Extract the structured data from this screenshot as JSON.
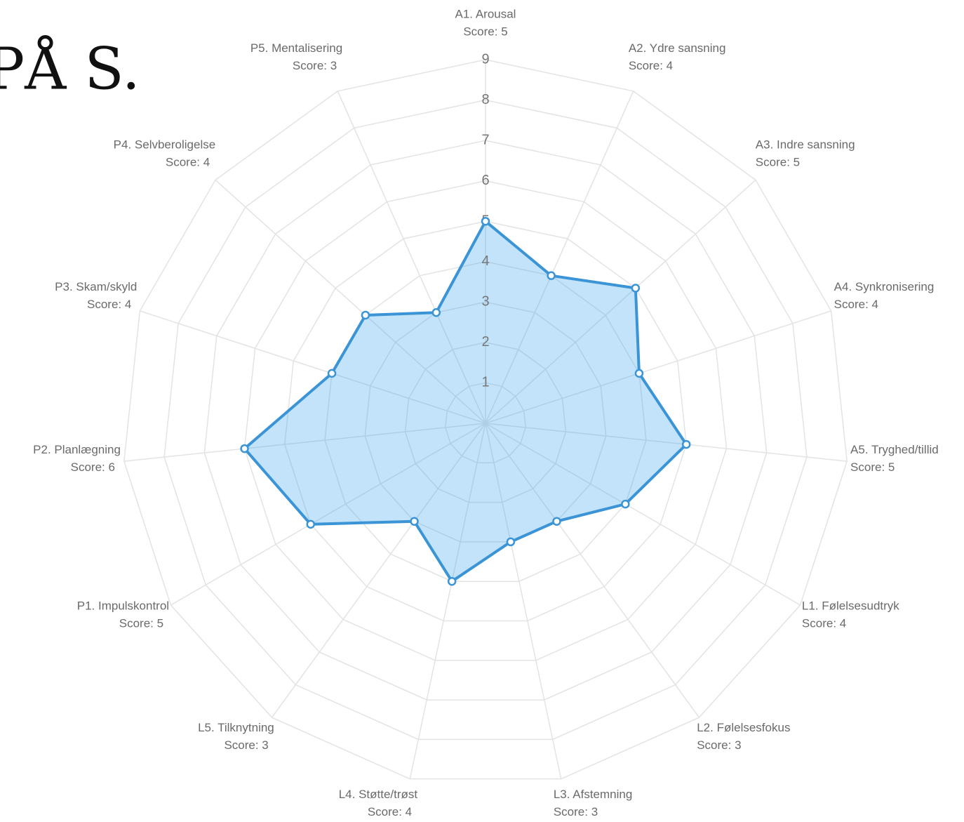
{
  "title": "PÅ S.",
  "chart_data": {
    "type": "radar",
    "categories": [
      "A1. Arousal",
      "A2. Ydre sansning",
      "A3. Indre sansning",
      "A4. Synkronisering",
      "A5. Tryghed/tillid",
      "L1. Følelsesudtryk",
      "L2. Følelsesfokus",
      "L3. Afstemning",
      "L4. Støtte/trøst",
      "L5. Tilknytning",
      "P1. Impulskontrol",
      "P2. Planlægning",
      "P3. Skam/skyld",
      "P4. Selvberoligelse",
      "P5. Mentalisering"
    ],
    "values": [
      5,
      4,
      5,
      4,
      5,
      4,
      3,
      3,
      4,
      3,
      5,
      6,
      4,
      4,
      3
    ],
    "value_labels": [
      "Score: 5",
      "Score: 4",
      "Score: 5",
      "Score: 4",
      "Score: 5",
      "Score: 4",
      "Score: 3",
      "Score: 3",
      "Score: 4",
      "Score: 3",
      "Score: 5",
      "Score: 6",
      "Score: 4",
      "Score: 4",
      "Score: 3"
    ],
    "color": "#3a94d6",
    "fill": "rgba(54,162,235,0.3)",
    "ylim": [
      0,
      9
    ],
    "yticks": [
      1,
      2,
      3,
      4,
      5,
      6,
      7,
      8,
      9
    ],
    "grid": true
  }
}
